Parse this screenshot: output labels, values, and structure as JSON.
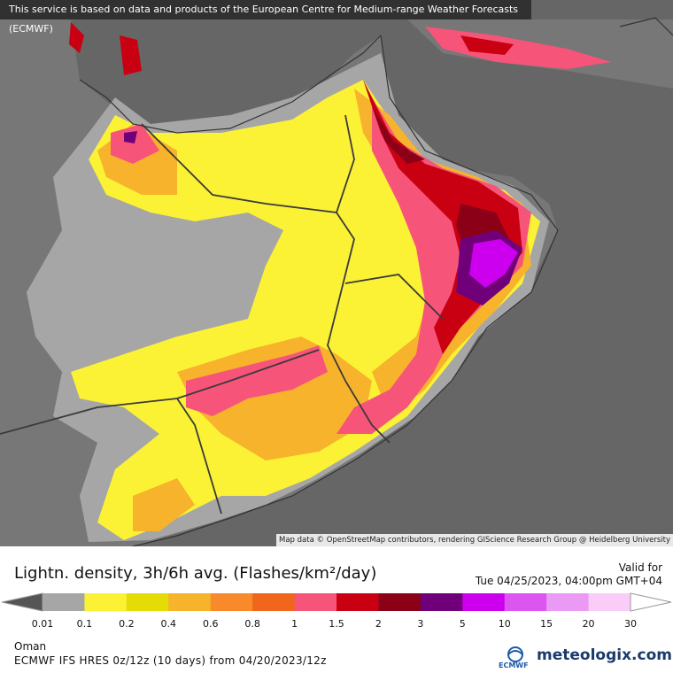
{
  "attribution_top": "This service is based on data and products of the European Centre for Medium-range Weather Forecasts (ECMWF)",
  "attribution_bottom": "Map data © OpenStreetMap contributors, rendering GIScience Research Group @ Heidelberg University",
  "legend": {
    "title": "Lightn. density, 3h/6h avg. (Flashes/km²/day)",
    "valid_label": "Valid for",
    "valid_time": "Tue 04/25/2023, 04:00pm GMT+04",
    "ticks": [
      "0.01",
      "0.1",
      "0.2",
      "0.4",
      "0.6",
      "0.8",
      "1",
      "1.5",
      "2",
      "3",
      "5",
      "10",
      "15",
      "20",
      "30"
    ],
    "colors": [
      "#a6a6a6",
      "#fbf236",
      "#e5db06",
      "#f7b32b",
      "#f88a2c",
      "#f0661b",
      "#f7547a",
      "#c90012",
      "#8b0017",
      "#700079",
      "#cc00ee",
      "#dd55f0",
      "#ea99f5",
      "#f9cdf8"
    ],
    "low_end_color": "#555555",
    "high_end_color": "#ffffff"
  },
  "region": "Oman",
  "model": "ECMWF IFS HRES 0z/12z (10 days) from 04/20/2023/12z",
  "brand": {
    "ecmwf": "ECMWF",
    "name": "meteologix.com"
  },
  "map_colors": {
    "sea": "#666666",
    "land": "#777777",
    "low": "#a6a6a6",
    "yellow": "#fbf236",
    "orange": "#f7b32b",
    "pink": "#f7547a",
    "red": "#c90012",
    "darkred": "#8b0017",
    "purple": "#700079",
    "magenta": "#cc00ee"
  }
}
